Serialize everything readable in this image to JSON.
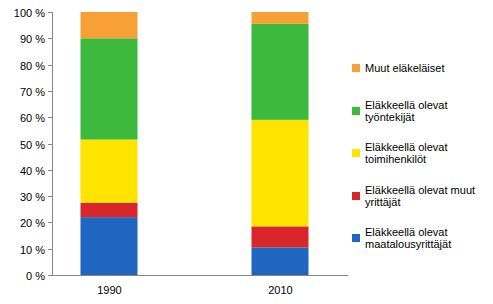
{
  "chart_data": {
    "type": "bar",
    "stacked": true,
    "grid": false,
    "legend": "right",
    "categories": [
      "1990",
      "2010"
    ],
    "ylim": [
      0,
      100
    ],
    "yticks": [
      {
        "value": 0,
        "label": "0 %"
      },
      {
        "value": 10,
        "label": "10 %"
      },
      {
        "value": 20,
        "label": "20 %"
      },
      {
        "value": 30,
        "label": "30 %"
      },
      {
        "value": 40,
        "label": "40 %"
      },
      {
        "value": 50,
        "label": "50 %"
      },
      {
        "value": 60,
        "label": "60 %"
      },
      {
        "value": 70,
        "label": "70 %"
      },
      {
        "value": 80,
        "label": "80 %"
      },
      {
        "value": 90,
        "label": "90 %"
      },
      {
        "value": 100,
        "label": "100 %"
      }
    ],
    "series": [
      {
        "name": "Eläkkeellä olevat maatalousyrittäjät",
        "color": "#1f66c1",
        "values": [
          22,
          10.5
        ]
      },
      {
        "name": "Eläkkeellä olevat muut yrittäjät",
        "color": "#d8262a",
        "values": [
          5.5,
          8
        ]
      },
      {
        "name": "Eläkkeellä olevat toimihenkilöt",
        "color": "#ffe400",
        "values": [
          24,
          40.5
        ]
      },
      {
        "name": "Eläkkeellä olevat työntekijät",
        "color": "#3dba3d",
        "values": [
          38.5,
          36.5
        ]
      },
      {
        "name": "Muut eläkeläiset",
        "color": "#f7a035",
        "values": [
          10,
          4.5
        ]
      }
    ]
  }
}
